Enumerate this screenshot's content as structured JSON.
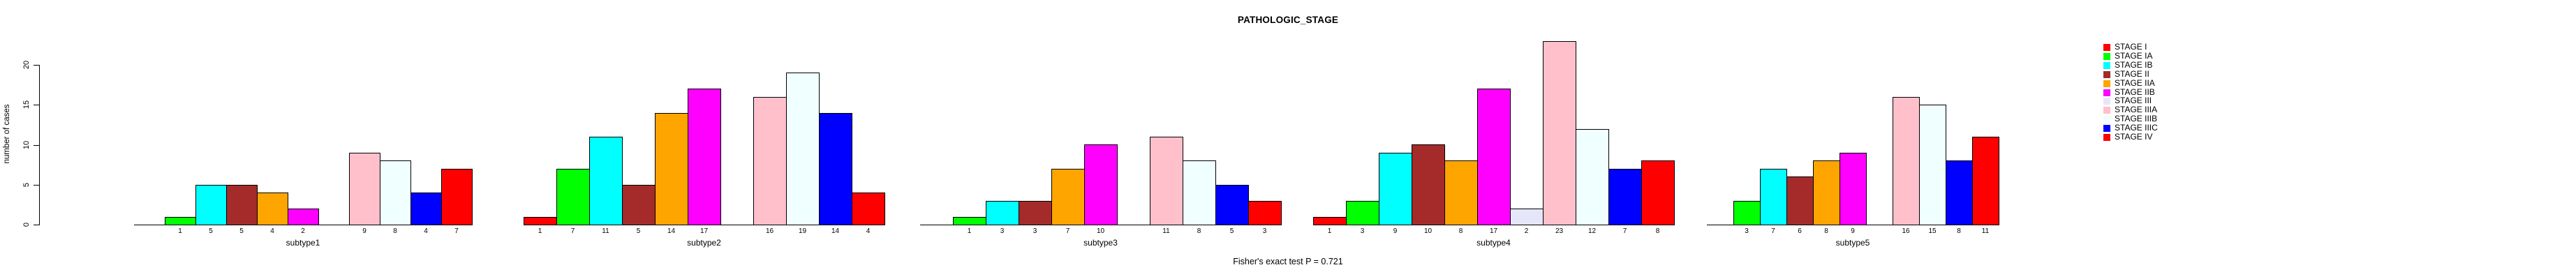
{
  "title": "PATHOLOGIC_STAGE",
  "footer": "Fisher's exact test P = 0.721",
  "chart_data": {
    "type": "bar",
    "title": "PATHOLOGIC_STAGE",
    "xlabel": "",
    "ylabel": "number of cases",
    "ylim": [
      0,
      20
    ],
    "yticks": [
      0,
      5,
      10,
      15,
      20
    ],
    "grid": false,
    "legend_position": "right-outside",
    "bar_value_labels_under_axis": true,
    "zero_bars_hidden": true,
    "categories": [
      "subtype1",
      "subtype2",
      "subtype3",
      "subtype4",
      "subtype5"
    ],
    "series": [
      {
        "name": "STAGE I",
        "color": "#FF0000",
        "values": [
          0,
          1,
          0,
          1,
          0
        ]
      },
      {
        "name": "STAGE IA",
        "color": "#00FF00",
        "values": [
          1,
          7,
          1,
          3,
          3
        ]
      },
      {
        "name": "STAGE IB",
        "color": "#00FFFF",
        "values": [
          5,
          11,
          3,
          9,
          7
        ]
      },
      {
        "name": "STAGE II",
        "color": "#A52A2A",
        "values": [
          5,
          5,
          3,
          10,
          6
        ]
      },
      {
        "name": "STAGE IIA",
        "color": "#FFA500",
        "values": [
          4,
          14,
          7,
          8,
          8
        ]
      },
      {
        "name": "STAGE IIB",
        "color": "#FF00FF",
        "values": [
          2,
          17,
          10,
          17,
          9
        ]
      },
      {
        "name": "STAGE III",
        "color": "#E6E6FA",
        "values": [
          0,
          0,
          0,
          2,
          0
        ]
      },
      {
        "name": "STAGE IIIA",
        "color": "#FFC0CB",
        "values": [
          9,
          16,
          11,
          23,
          16
        ]
      },
      {
        "name": "STAGE IIIB",
        "color": "#F0FFFF",
        "values": [
          8,
          19,
          8,
          12,
          15
        ]
      },
      {
        "name": "STAGE IIIC",
        "color": "#0000FF",
        "values": [
          4,
          14,
          5,
          7,
          8
        ]
      },
      {
        "name": "STAGE IV",
        "color": "#FF0000",
        "values": [
          7,
          4,
          3,
          8,
          11
        ]
      }
    ],
    "annotation": "Fisher's exact test P = 0.721"
  }
}
